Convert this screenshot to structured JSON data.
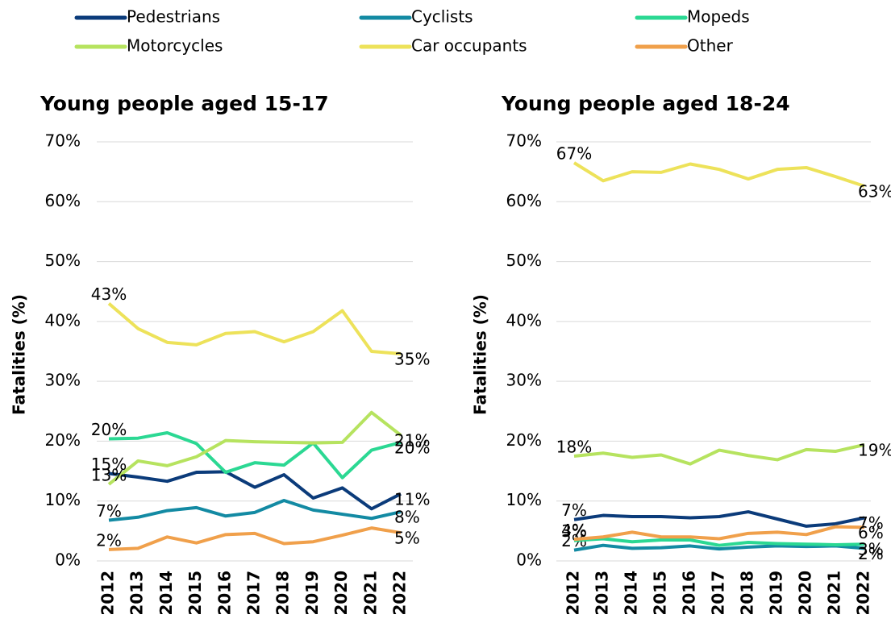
{
  "chart_data": [
    {
      "type": "line",
      "title": "Young people aged 15-17",
      "ylabel": "Fatalities (%)",
      "categories": [
        "2012",
        "2013",
        "2014",
        "2015",
        "2016",
        "2017",
        "2018",
        "2019",
        "2020",
        "2021",
        "2022"
      ],
      "ylim": [
        0,
        70
      ],
      "yticks": [
        {
          "value": 0,
          "label": "0%"
        },
        {
          "value": 10,
          "label": "10%"
        },
        {
          "value": 20,
          "label": "20%"
        },
        {
          "value": 30,
          "label": "30%"
        },
        {
          "value": 40,
          "label": "40%"
        },
        {
          "value": 50,
          "label": "50%"
        },
        {
          "value": 60,
          "label": "60%"
        },
        {
          "value": 70,
          "label": "70%"
        }
      ],
      "grid": true,
      "series": [
        {
          "name": "Pedestrians",
          "color": "#0b3b7a",
          "values": [
            14.6,
            14,
            13.3,
            14.8,
            14.9,
            12.3,
            14.4,
            10.5,
            12.2,
            8.7,
            11.2
          ],
          "value_labels": [
            "15%",
            null,
            null,
            null,
            null,
            null,
            null,
            null,
            null,
            null,
            "11%"
          ]
        },
        {
          "name": "Cyclists",
          "color": "#138aa3",
          "values": [
            6.8,
            7.3,
            8.4,
            8.9,
            7.5,
            8.1,
            10.1,
            8.5,
            7.8,
            7.1,
            8.2
          ],
          "value_labels": [
            "7%",
            null,
            null,
            null,
            null,
            null,
            null,
            null,
            null,
            null,
            "8%"
          ]
        },
        {
          "name": "Mopeds",
          "color": "#2bd893",
          "values": [
            20.4,
            20.5,
            21.4,
            19.6,
            14.8,
            16.4,
            16,
            19.7,
            13.9,
            18.5,
            19.8
          ],
          "value_labels": [
            "20%",
            null,
            null,
            null,
            null,
            null,
            null,
            null,
            null,
            null,
            "20%"
          ]
        },
        {
          "name": "Motorcycles",
          "color": "#b6e35f",
          "values": [
            12.8,
            16.7,
            15.9,
            17.4,
            20.1,
            19.9,
            19.8,
            19.7,
            19.8,
            24.8,
            21
          ],
          "value_labels": [
            "13%",
            null,
            null,
            null,
            null,
            null,
            null,
            null,
            null,
            null,
            "21%"
          ]
        },
        {
          "name": "Car occupants",
          "color": "#ede25a",
          "values": [
            43,
            38.8,
            36.5,
            36.1,
            38,
            38.3,
            36.6,
            38.3,
            41.8,
            35,
            34.6
          ],
          "value_labels": [
            "43%",
            null,
            null,
            null,
            null,
            null,
            null,
            null,
            null,
            null,
            "35%"
          ]
        },
        {
          "name": "Other",
          "color": "#f0a04b",
          "values": [
            1.9,
            2.1,
            4,
            3,
            4.4,
            4.6,
            2.9,
            3.2,
            4.3,
            5.5,
            4.7
          ],
          "value_labels": [
            "2%",
            null,
            null,
            null,
            null,
            null,
            null,
            null,
            null,
            null,
            "5%"
          ]
        }
      ]
    },
    {
      "type": "line",
      "title": "Young people aged 18-24",
      "ylabel": "Fatalities (%)",
      "categories": [
        "2012",
        "2013",
        "2014",
        "2015",
        "2016",
        "2017",
        "2018",
        "2019",
        "2020",
        "2021",
        "2022"
      ],
      "ylim": [
        0,
        70
      ],
      "yticks": [
        {
          "value": 0,
          "label": "0%"
        },
        {
          "value": 10,
          "label": "10%"
        },
        {
          "value": 20,
          "label": "20%"
        },
        {
          "value": 30,
          "label": "30%"
        },
        {
          "value": 40,
          "label": "40%"
        },
        {
          "value": 50,
          "label": "50%"
        },
        {
          "value": 60,
          "label": "60%"
        },
        {
          "value": 70,
          "label": "70%"
        }
      ],
      "grid": true,
      "series": [
        {
          "name": "Pedestrians",
          "color": "#0b3b7a",
          "values": [
            6.9,
            7.6,
            7.4,
            7.4,
            7.2,
            7.4,
            8.2,
            7,
            5.8,
            6.2,
            7.2
          ],
          "value_labels": [
            "7%",
            null,
            null,
            null,
            null,
            null,
            null,
            null,
            null,
            null,
            "7%"
          ]
        },
        {
          "name": "Cyclists",
          "color": "#138aa3",
          "values": [
            1.8,
            2.6,
            2.1,
            2.2,
            2.5,
            2,
            2.3,
            2.5,
            2.4,
            2.5,
            2.1
          ],
          "value_labels": [
            "2%",
            null,
            null,
            null,
            null,
            null,
            null,
            null,
            null,
            null,
            "2%"
          ]
        },
        {
          "name": "Mopeds",
          "color": "#2bd893",
          "values": [
            3.4,
            3.7,
            3.2,
            3.5,
            3.5,
            2.6,
            3.1,
            2.9,
            2.8,
            2.7,
            2.8
          ],
          "value_labels": [
            "3%",
            null,
            null,
            null,
            null,
            null,
            null,
            null,
            null,
            null,
            "3%"
          ]
        },
        {
          "name": "Motorcycles",
          "color": "#b6e35f",
          "values": [
            17.5,
            18,
            17.3,
            17.7,
            16.2,
            18.5,
            17.6,
            16.9,
            18.6,
            18.3,
            19.4
          ],
          "value_labels": [
            "18%",
            null,
            null,
            null,
            null,
            null,
            null,
            null,
            null,
            null,
            "19%"
          ]
        },
        {
          "name": "Car occupants",
          "color": "#ede25a",
          "values": [
            66.5,
            63.5,
            65,
            64.9,
            66.3,
            65.4,
            63.8,
            65.4,
            65.7,
            64.2,
            62.6
          ],
          "value_labels": [
            "67%",
            null,
            null,
            null,
            null,
            null,
            null,
            null,
            null,
            null,
            "63%"
          ]
        },
        {
          "name": "Other",
          "color": "#f0a04b",
          "values": [
            3.6,
            4,
            4.8,
            4,
            4,
            3.7,
            4.6,
            4.8,
            4.4,
            5.7,
            5.6
          ],
          "value_labels": [
            "4%",
            null,
            null,
            null,
            null,
            null,
            null,
            null,
            null,
            null,
            "6%"
          ]
        }
      ]
    }
  ]
}
